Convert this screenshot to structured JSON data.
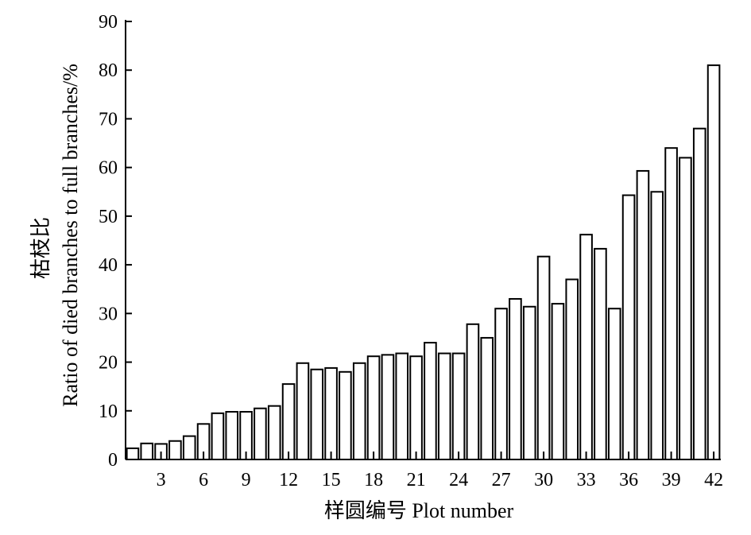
{
  "chart_data": {
    "type": "bar",
    "title": "",
    "xlabel": "样圆编号 Plot number",
    "ylabel_cn": "枯枝比",
    "ylabel_en": "Ratio of died branches to full branches/%",
    "x": [
      1,
      2,
      3,
      4,
      5,
      6,
      7,
      8,
      9,
      10,
      11,
      12,
      13,
      14,
      15,
      16,
      17,
      18,
      19,
      20,
      21,
      22,
      23,
      24,
      25,
      26,
      27,
      28,
      29,
      30,
      31,
      32,
      33,
      34,
      35,
      36,
      37,
      38,
      39,
      40,
      41,
      42
    ],
    "values": [
      2.3,
      3.3,
      3.2,
      3.8,
      4.8,
      7.3,
      9.5,
      9.8,
      9.8,
      10.5,
      11,
      15.5,
      19.8,
      18.5,
      18.8,
      18,
      19.8,
      21.2,
      21.5,
      21.8,
      21.2,
      24,
      21.8,
      21.8,
      27.8,
      25,
      31,
      33,
      31.4,
      41.7,
      32,
      37,
      46.2,
      43.3,
      31,
      54.3,
      59.3,
      55,
      64,
      62,
      68,
      81
    ],
    "xticks": [
      3,
      6,
      9,
      12,
      15,
      18,
      21,
      24,
      27,
      30,
      33,
      36,
      39,
      42
    ],
    "yticks": [
      0,
      10,
      20,
      30,
      40,
      50,
      60,
      70,
      80,
      90
    ],
    "ylim": [
      0,
      90
    ],
    "grid": false,
    "legend": "none",
    "bar_fill": "#ffffff",
    "bar_stroke": "#000000"
  }
}
